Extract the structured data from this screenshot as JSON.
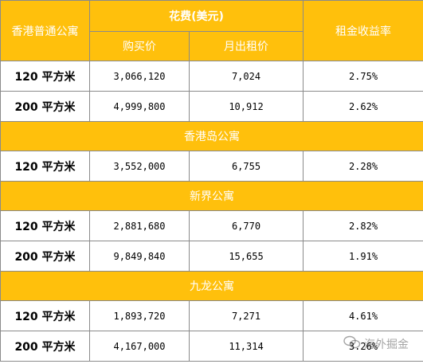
{
  "header": {
    "col1": "香港普通公寓",
    "cost_group": "花费(美元)",
    "purchase_price": "购买价",
    "monthly_rent": "月出租价",
    "rental_yield": "租金收益率"
  },
  "sections": [
    {
      "title": "",
      "rows": [
        {
          "size": "120 平方米",
          "price": "3,066,120",
          "rent": "7,024",
          "yield": "2.75%"
        },
        {
          "size": "200 平方米",
          "price": "4,999,800",
          "rent": "10,912",
          "yield": "2.62%"
        }
      ]
    },
    {
      "title": "香港岛公寓",
      "rows": [
        {
          "size": "120 平方米",
          "price": "3,552,000",
          "rent": "6,755",
          "yield": "2.28%"
        }
      ]
    },
    {
      "title": "新界公寓",
      "rows": [
        {
          "size": "120 平方米",
          "price": "2,881,680",
          "rent": "6,770",
          "yield": "2.82%"
        },
        {
          "size": "200 平方米",
          "price": "9,849,840",
          "rent": "15,655",
          "yield": "1.91%"
        }
      ]
    },
    {
      "title": "九龙公寓",
      "rows": [
        {
          "size": "120 平方米",
          "price": "1,893,720",
          "rent": "7,271",
          "yield": "4.61%"
        },
        {
          "size": "200 平方米",
          "price": "4,167,000",
          "rent": "11,314",
          "yield": "3.26%"
        }
      ]
    }
  ],
  "watermark": "海外掘金",
  "colors": {
    "header_bg": "#FFC00C",
    "header_text": "#FFFFFF"
  }
}
